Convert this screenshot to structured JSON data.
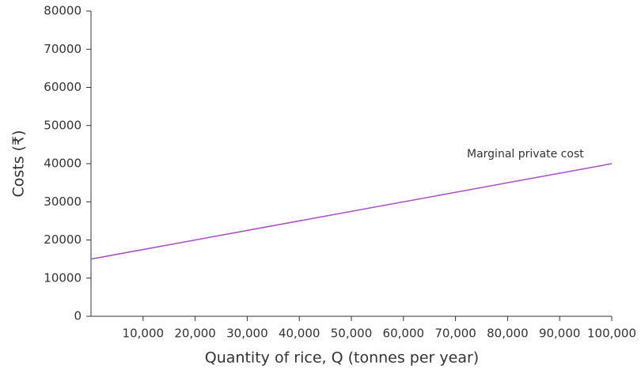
{
  "chart_data": {
    "type": "line",
    "x_label": "Quantity of rice, Q (tonnes per year)",
    "y_label": "Costs (₹)",
    "annotation": "Marginal private cost",
    "xlim": [
      0,
      100000
    ],
    "ylim": [
      0,
      80000
    ],
    "xticks": [
      {
        "value": 10000,
        "label": "10,000"
      },
      {
        "value": 20000,
        "label": "20,000"
      },
      {
        "value": 30000,
        "label": "30,000"
      },
      {
        "value": 40000,
        "label": "40,000"
      },
      {
        "value": 50000,
        "label": "50,000"
      },
      {
        "value": 60000,
        "label": "60,000"
      },
      {
        "value": 70000,
        "label": "70,000"
      },
      {
        "value": 80000,
        "label": "80,000"
      },
      {
        "value": 90000,
        "label": "90,000"
      },
      {
        "value": 100000,
        "label": "100,000"
      }
    ],
    "yticks": [
      0,
      10000,
      20000,
      30000,
      40000,
      50000,
      60000,
      70000,
      80000
    ],
    "x": [
      0,
      100000
    ],
    "series": [
      {
        "name": "Marginal private cost",
        "color": "#a64dbf",
        "values": [
          15000,
          40000
        ]
      }
    ]
  }
}
